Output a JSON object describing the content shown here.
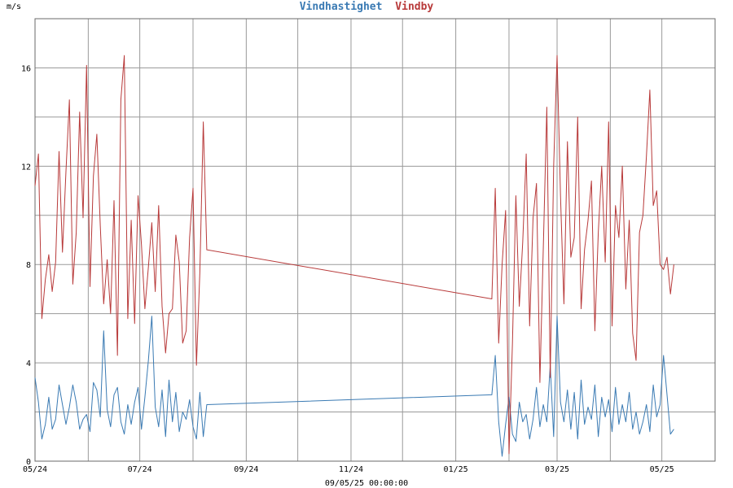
{
  "chart_data": {
    "type": "line",
    "title_parts": [
      {
        "text": "Vindhastighet",
        "color": "#3a7ab3"
      },
      {
        "text": "Vindby",
        "color": "#b83a3a"
      }
    ],
    "ylabel": "m/s",
    "footer": "09/05/25 00:00:00",
    "ylim": [
      0,
      18
    ],
    "yticks": [
      0,
      4,
      8,
      12,
      16
    ],
    "x_start": "2024-05-01",
    "x_end": "2025-06-01",
    "xticks": [
      {
        "label": "05/24",
        "date": "2024-05-01"
      },
      {
        "label": "07/24",
        "date": "2024-07-01"
      },
      {
        "label": "09/24",
        "date": "2024-09-01"
      },
      {
        "label": "11/24",
        "date": "2024-11-01"
      },
      {
        "label": "01/25",
        "date": "2025-01-01"
      },
      {
        "label": "03/25",
        "date": "2025-03-01"
      },
      {
        "label": "05/25",
        "date": "2025-05-01"
      }
    ],
    "grid": true,
    "series": [
      {
        "color": "#3a7ab3",
        "x": [
          "2024-05-01",
          "2024-05-03",
          "2024-05-05",
          "2024-05-07",
          "2024-05-09",
          "2024-05-11",
          "2024-05-13",
          "2024-05-15",
          "2024-05-17",
          "2024-05-19",
          "2024-05-21",
          "2024-05-23",
          "2024-05-25",
          "2024-05-27",
          "2024-05-29",
          "2024-05-31",
          "2024-06-02",
          "2024-06-04",
          "2024-06-06",
          "2024-06-08",
          "2024-06-10",
          "2024-06-12",
          "2024-06-14",
          "2024-06-16",
          "2024-06-18",
          "2024-06-20",
          "2024-06-22",
          "2024-06-24",
          "2024-06-26",
          "2024-06-28",
          "2024-06-30",
          "2024-07-02",
          "2024-07-04",
          "2024-07-06",
          "2024-07-08",
          "2024-07-10",
          "2024-07-12",
          "2024-07-14",
          "2024-07-16",
          "2024-07-18",
          "2024-07-20",
          "2024-07-22",
          "2024-07-24",
          "2024-07-26",
          "2024-07-28",
          "2024-07-30",
          "2024-08-01",
          "2024-08-03",
          "2024-08-05",
          "2024-08-07",
          "2024-08-09",
          "2025-01-22",
          "2025-01-24",
          "2025-01-26",
          "2025-01-28",
          "2025-01-30",
          "2025-02-01",
          "2025-02-03",
          "2025-02-05",
          "2025-02-07",
          "2025-02-09",
          "2025-02-11",
          "2025-02-13",
          "2025-02-15",
          "2025-02-17",
          "2025-02-19",
          "2025-02-21",
          "2025-02-23",
          "2025-02-25",
          "2025-02-27",
          "2025-03-01",
          "2025-03-03",
          "2025-03-05",
          "2025-03-07",
          "2025-03-09",
          "2025-03-11",
          "2025-03-13",
          "2025-03-15",
          "2025-03-17",
          "2025-03-19",
          "2025-03-21",
          "2025-03-23",
          "2025-03-25",
          "2025-03-27",
          "2025-03-29",
          "2025-03-31",
          "2025-04-02",
          "2025-04-04",
          "2025-04-06",
          "2025-04-08",
          "2025-04-10",
          "2025-04-12",
          "2025-04-14",
          "2025-04-16",
          "2025-04-18",
          "2025-04-20",
          "2025-04-22",
          "2025-04-24",
          "2025-04-26",
          "2025-04-28",
          "2025-04-30",
          "2025-05-02",
          "2025-05-04",
          "2025-05-06",
          "2025-05-08"
        ],
        "values": [
          3.4,
          2.4,
          0.9,
          1.5,
          2.6,
          1.3,
          1.7,
          3.1,
          2.3,
          1.5,
          2.2,
          3.1,
          2.4,
          1.3,
          1.7,
          1.9,
          1.2,
          3.2,
          2.9,
          1.8,
          5.3,
          2.1,
          1.4,
          2.7,
          3.0,
          1.6,
          1.1,
          2.3,
          1.5,
          2.4,
          3.0,
          1.3,
          2.6,
          4.1,
          5.9,
          2.2,
          1.4,
          2.9,
          1.0,
          3.3,
          1.6,
          2.8,
          1.2,
          2.0,
          1.7,
          2.5,
          1.4,
          0.9,
          2.8,
          1.0,
          2.3,
          2.7,
          4.3,
          1.6,
          0.2,
          1.5,
          2.6,
          1.1,
          0.8,
          2.4,
          1.6,
          1.9,
          0.9,
          1.7,
          3.0,
          1.4,
          2.3,
          1.6,
          3.9,
          1.0,
          5.9,
          2.4,
          1.6,
          2.9,
          1.3,
          2.8,
          0.9,
          3.3,
          1.5,
          2.2,
          1.7,
          3.1,
          1.0,
          2.6,
          1.8,
          2.5,
          1.2,
          3.0,
          1.5,
          2.3,
          1.6,
          2.8,
          1.3,
          2.0,
          1.1,
          1.6,
          2.3,
          1.2,
          3.1,
          1.8,
          2.3,
          4.3,
          2.7,
          1.1,
          1.3
        ]
      },
      {
        "color": "#b83a3a",
        "x": [
          "2024-05-01",
          "2024-05-03",
          "2024-05-05",
          "2024-05-07",
          "2024-05-09",
          "2024-05-11",
          "2024-05-13",
          "2024-05-15",
          "2024-05-17",
          "2024-05-19",
          "2024-05-21",
          "2024-05-23",
          "2024-05-25",
          "2024-05-27",
          "2024-05-29",
          "2024-05-31",
          "2024-06-02",
          "2024-06-04",
          "2024-06-06",
          "2024-06-08",
          "2024-06-10",
          "2024-06-12",
          "2024-06-14",
          "2024-06-16",
          "2024-06-18",
          "2024-06-20",
          "2024-06-22",
          "2024-06-24",
          "2024-06-26",
          "2024-06-28",
          "2024-06-30",
          "2024-07-02",
          "2024-07-04",
          "2024-07-06",
          "2024-07-08",
          "2024-07-10",
          "2024-07-12",
          "2024-07-14",
          "2024-07-16",
          "2024-07-18",
          "2024-07-20",
          "2024-07-22",
          "2024-07-24",
          "2024-07-26",
          "2024-07-28",
          "2024-07-30",
          "2024-08-01",
          "2024-08-03",
          "2024-08-05",
          "2024-08-07",
          "2024-08-09",
          "2025-01-22",
          "2025-01-24",
          "2025-01-26",
          "2025-01-28",
          "2025-01-30",
          "2025-02-01",
          "2025-02-03",
          "2025-02-05",
          "2025-02-07",
          "2025-02-09",
          "2025-02-11",
          "2025-02-13",
          "2025-02-15",
          "2025-02-17",
          "2025-02-19",
          "2025-02-21",
          "2025-02-23",
          "2025-02-25",
          "2025-02-27",
          "2025-03-01",
          "2025-03-03",
          "2025-03-05",
          "2025-03-07",
          "2025-03-09",
          "2025-03-11",
          "2025-03-13",
          "2025-03-15",
          "2025-03-17",
          "2025-03-19",
          "2025-03-21",
          "2025-03-23",
          "2025-03-25",
          "2025-03-27",
          "2025-03-29",
          "2025-03-31",
          "2025-04-02",
          "2025-04-04",
          "2025-04-06",
          "2025-04-08",
          "2025-04-10",
          "2025-04-12",
          "2025-04-14",
          "2025-04-16",
          "2025-04-18",
          "2025-04-20",
          "2025-04-22",
          "2025-04-24",
          "2025-04-26",
          "2025-04-28",
          "2025-04-30",
          "2025-05-02",
          "2025-05-04",
          "2025-05-06",
          "2025-05-08"
        ],
        "values": [
          11.2,
          12.5,
          5.8,
          7.4,
          8.4,
          6.9,
          8.1,
          12.6,
          8.5,
          11.8,
          14.7,
          7.2,
          9.3,
          14.2,
          9.9,
          16.1,
          7.1,
          11.6,
          13.3,
          9.6,
          6.4,
          8.2,
          6.0,
          10.6,
          4.3,
          14.7,
          16.5,
          5.8,
          9.8,
          5.6,
          10.8,
          8.8,
          6.2,
          7.9,
          9.7,
          6.9,
          10.4,
          6.3,
          4.4,
          6.0,
          6.2,
          9.2,
          8.1,
          4.8,
          5.3,
          9.1,
          11.1,
          3.9,
          7.7,
          13.8,
          8.6,
          6.6,
          11.1,
          4.8,
          8.0,
          10.2,
          0.3,
          4.8,
          10.8,
          6.3,
          8.9,
          12.5,
          5.5,
          9.9,
          11.3,
          3.2,
          8.7,
          14.4,
          3.4,
          12.0,
          16.5,
          10.8,
          6.4,
          13.0,
          8.3,
          9.1,
          14.0,
          6.2,
          8.6,
          9.8,
          11.4,
          5.3,
          9.3,
          12.0,
          8.1,
          13.8,
          5.5,
          10.4,
          9.1,
          12.0,
          7.0,
          9.8,
          5.2,
          4.1,
          9.3,
          10.0,
          12.4,
          15.1,
          10.4,
          11.0,
          8.0,
          7.8,
          8.3,
          6.8,
          8.0
        ]
      }
    ]
  }
}
